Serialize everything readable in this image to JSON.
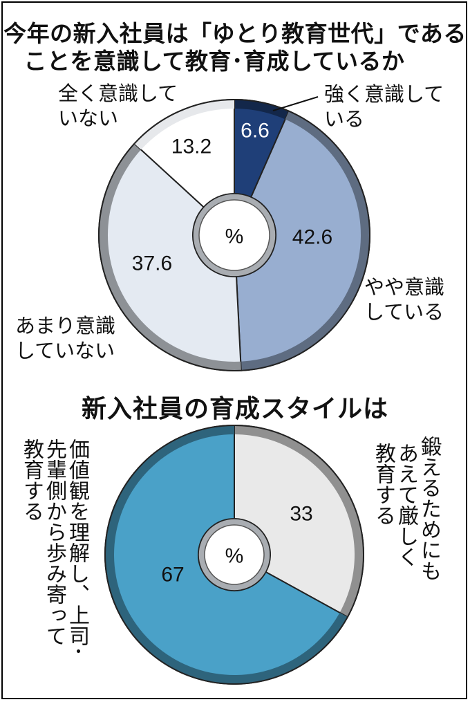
{
  "chart_data": [
    {
      "type": "pie",
      "title": "今年の新入社員は「ゆとり教育世代」であることを意識して教育･育成しているか",
      "title_lines": [
        "今年の新入社員は「ゆとり教育世代」である",
        "ことを意識して教育･育成しているか"
      ],
      "center_label": "%",
      "categories": [
        "強く意識している",
        "やや意識している",
        "あまり意識していない",
        "全く意識していない"
      ],
      "label_lines": [
        [
          "強く意識して",
          "いる"
        ],
        [
          "やや意識",
          "している"
        ],
        [
          "あまり意識",
          "していない"
        ],
        [
          "全く意識して",
          "いない"
        ]
      ],
      "values": [
        6.6,
        42.6,
        37.6,
        13.2
      ],
      "value_labels": [
        "6.6",
        "42.6",
        "37.6",
        "13.2"
      ],
      "colors": [
        "#1f3f78",
        "#98aed0",
        "#e4eaf2",
        "#ffffff"
      ]
    },
    {
      "type": "pie",
      "title": "新入社員の育成スタイルは",
      "center_label": "%",
      "categories": [
        "鍛えるためにもあえて厳しく教育する",
        "価値観を理解し、上司･先輩側から歩み寄って教育する"
      ],
      "label_columns": [
        [
          "鍛えるためにも",
          "あえて厳しく",
          "教育する"
        ],
        [
          "価値観を理解し、上司･",
          "先輩側から歩み寄って",
          "教育する"
        ]
      ],
      "values": [
        33,
        67
      ],
      "value_labels": [
        "33",
        "67"
      ],
      "colors": [
        "#e9e9e9",
        "#4aa1c8"
      ]
    }
  ]
}
